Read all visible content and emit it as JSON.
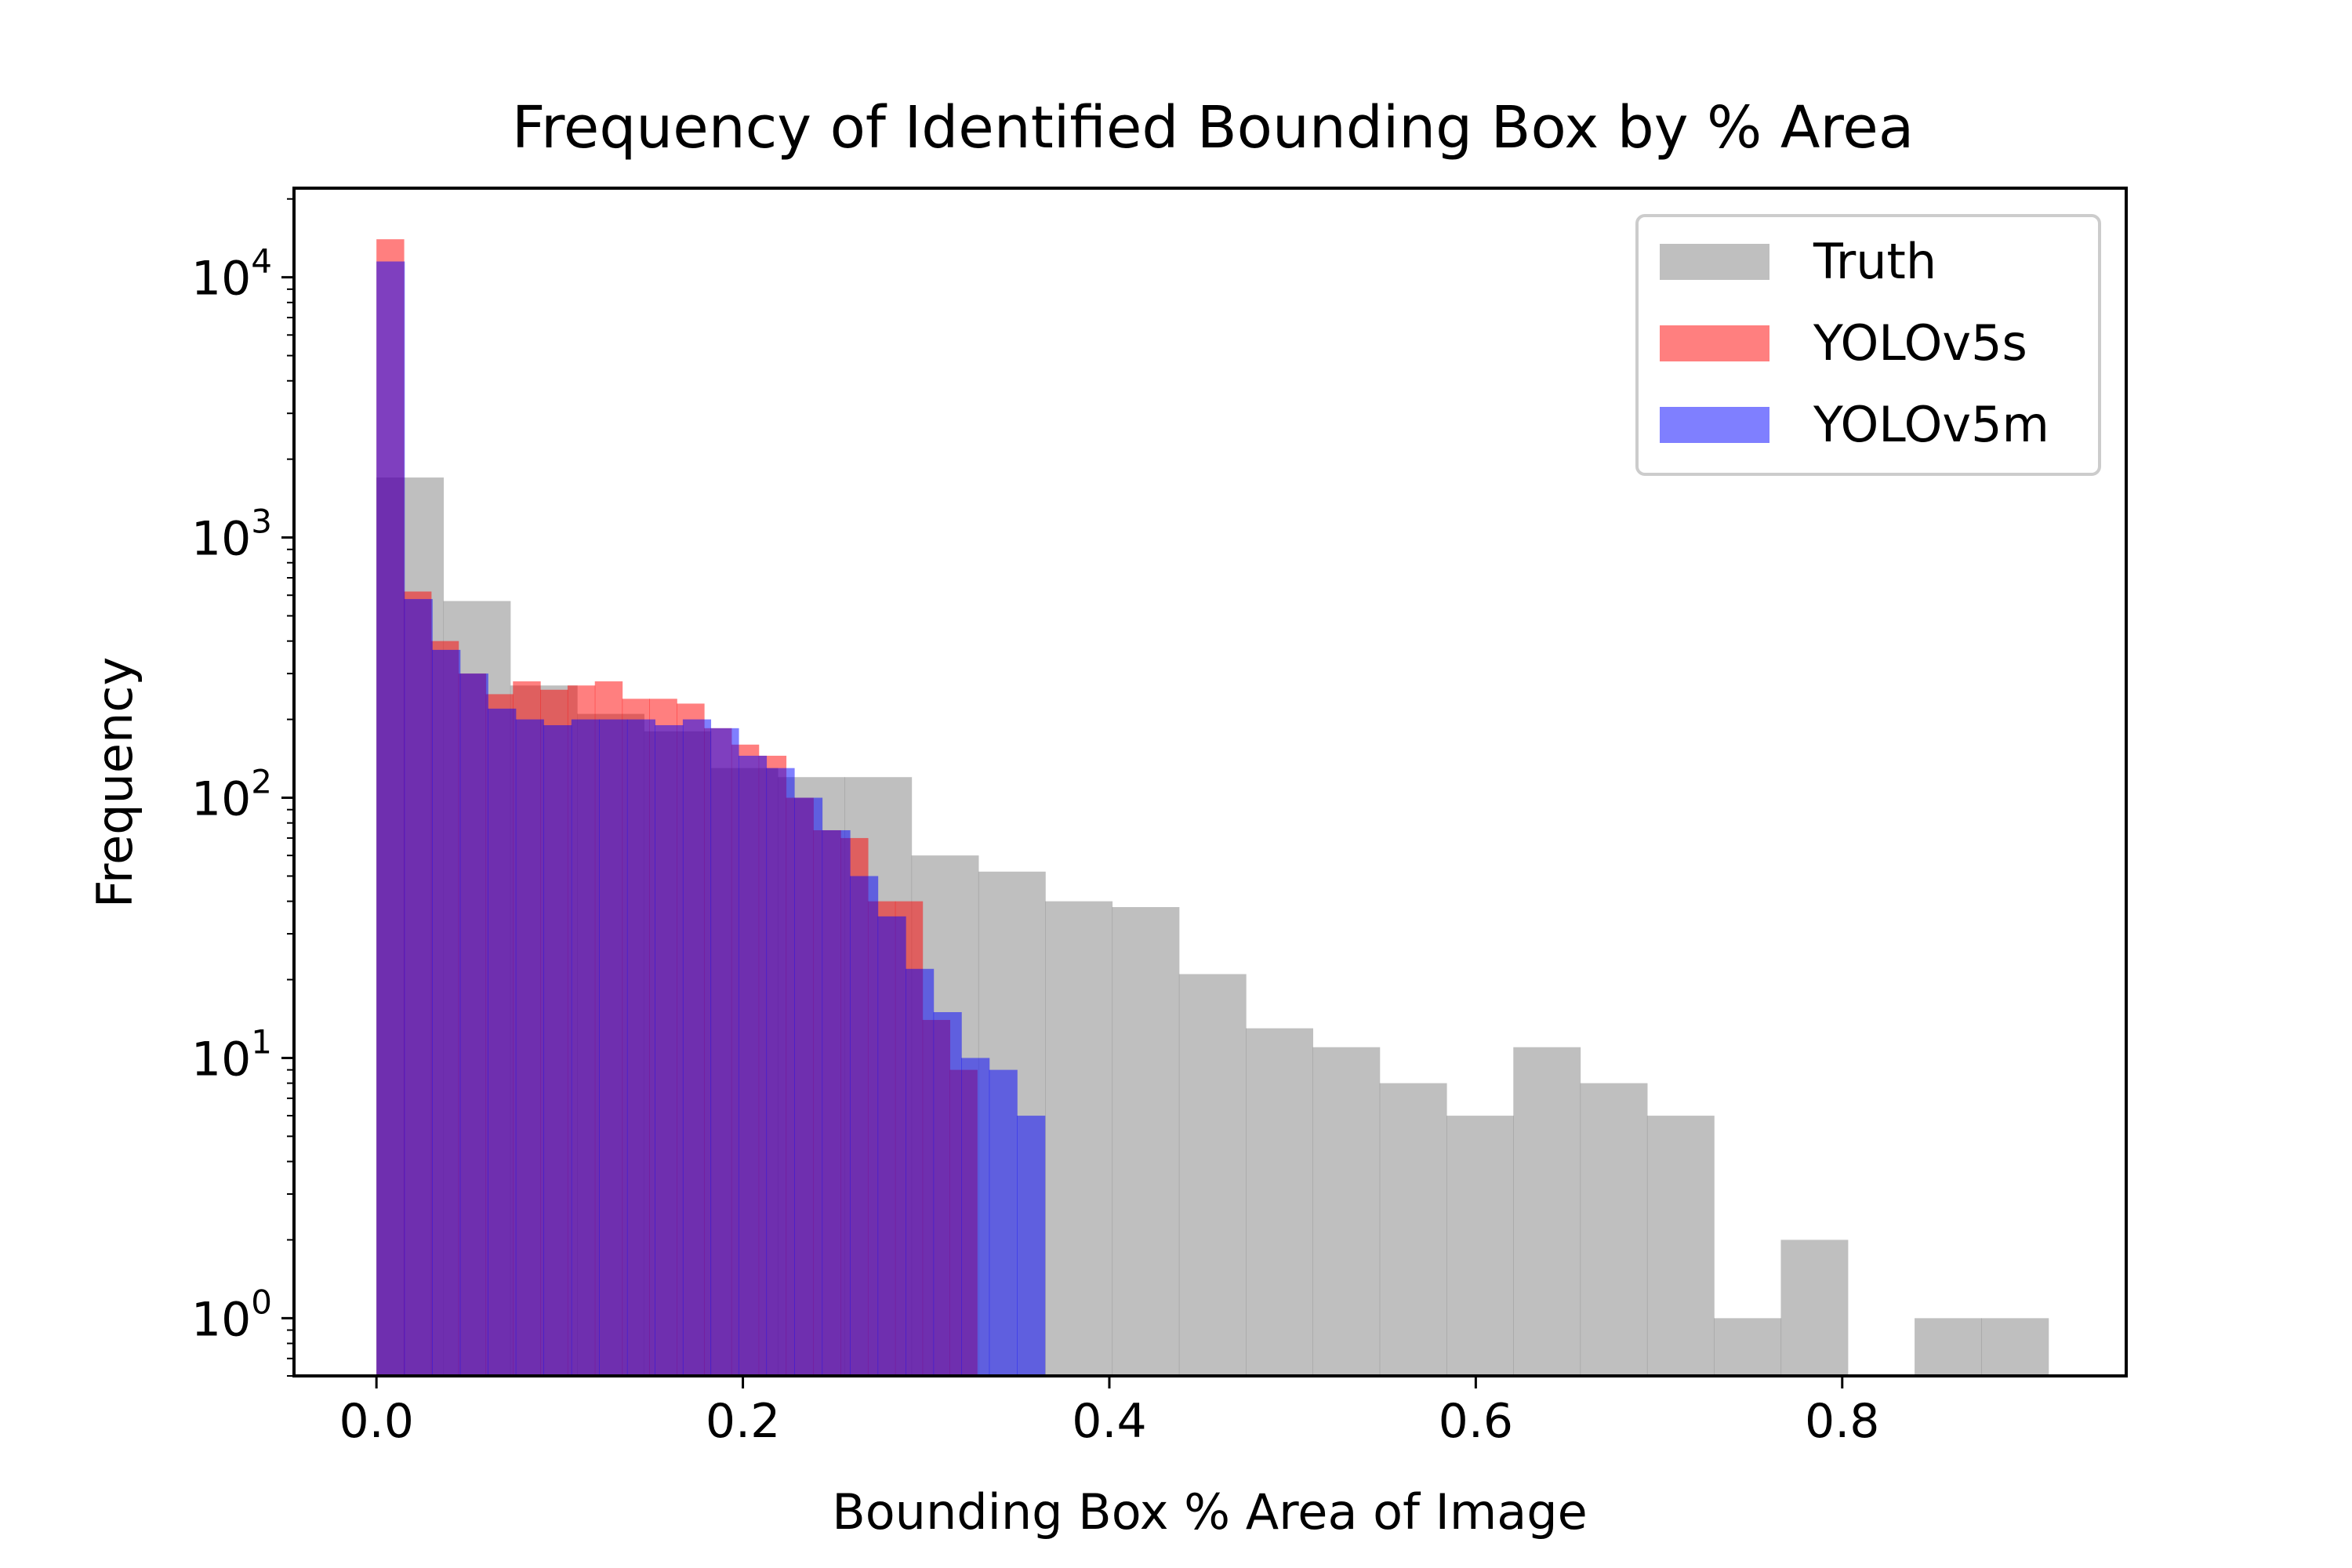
{
  "chart_data": {
    "type": "bar",
    "title": "Frequency of Identified Bounding Box by % Area",
    "xlabel": "Bounding Box % Area of Image",
    "ylabel": "Frequency",
    "xlim": [
      -0.045,
      0.955
    ],
    "ylim": [
      0.6,
      22000
    ],
    "y_scale": "log",
    "x_ticks": [
      {
        "value": 0.0,
        "label": "0.0"
      },
      {
        "value": 0.2,
        "label": "0.2"
      },
      {
        "value": 0.4,
        "label": "0.4"
      },
      {
        "value": 0.6,
        "label": "0.6"
      },
      {
        "value": 0.8,
        "label": "0.8"
      }
    ],
    "y_ticks": [
      {
        "value": 1,
        "base": "10",
        "exp": "0"
      },
      {
        "value": 10,
        "base": "10",
        "exp": "1"
      },
      {
        "value": 100,
        "base": "10",
        "exp": "2"
      },
      {
        "value": 1000,
        "base": "10",
        "exp": "3"
      },
      {
        "value": 10000,
        "base": "10",
        "exp": "4"
      }
    ],
    "grid": false,
    "legend_position": "top-right",
    "series": [
      {
        "name": "Truth",
        "color": "#808080",
        "opacity": 0.5,
        "edges": [
          0.0,
          0.0365,
          0.073,
          0.1095,
          0.146,
          0.1825,
          0.219,
          0.2555,
          0.292,
          0.3285,
          0.365,
          0.4015,
          0.438,
          0.4745,
          0.511,
          0.5475,
          0.584,
          0.6205,
          0.657,
          0.6935,
          0.73,
          0.7665,
          0.803,
          0.8395,
          0.876,
          0.9125
        ],
        "values": [
          1700,
          570,
          270,
          210,
          180,
          130,
          120,
          120,
          60,
          52,
          40,
          38,
          21,
          13,
          11,
          8,
          6,
          11,
          8,
          6,
          1,
          2,
          0,
          1,
          1
        ]
      },
      {
        "name": "YOLOv5s",
        "color": "#ff0000",
        "opacity": 0.5,
        "edges": [
          0.0,
          0.0149,
          0.0298,
          0.0447,
          0.0596,
          0.0745,
          0.0894,
          0.1043,
          0.1192,
          0.1341,
          0.149,
          0.1639,
          0.1788,
          0.1937,
          0.2086,
          0.2235,
          0.2384,
          0.2533,
          0.2682,
          0.2831,
          0.298,
          0.3129,
          0.3278
        ],
        "values": [
          14000,
          620,
          400,
          300,
          250,
          280,
          260,
          270,
          280,
          240,
          240,
          230,
          185,
          160,
          145,
          100,
          75,
          70,
          40,
          40,
          14,
          9
        ]
      },
      {
        "name": "YOLOv5m",
        "color": "#0000ff",
        "opacity": 0.5,
        "edges": [
          0.0,
          0.0152,
          0.0304,
          0.0456,
          0.0608,
          0.076,
          0.0912,
          0.1064,
          0.1216,
          0.1368,
          0.152,
          0.1672,
          0.1824,
          0.1976,
          0.2128,
          0.228,
          0.2432,
          0.2584,
          0.2736,
          0.2888,
          0.304,
          0.3192,
          0.3344,
          0.3496,
          0.3648
        ],
        "values": [
          11500,
          580,
          370,
          300,
          220,
          200,
          190,
          200,
          200,
          200,
          190,
          200,
          185,
          145,
          130,
          100,
          75,
          50,
          35,
          22,
          15,
          10,
          9,
          6
        ]
      }
    ]
  }
}
